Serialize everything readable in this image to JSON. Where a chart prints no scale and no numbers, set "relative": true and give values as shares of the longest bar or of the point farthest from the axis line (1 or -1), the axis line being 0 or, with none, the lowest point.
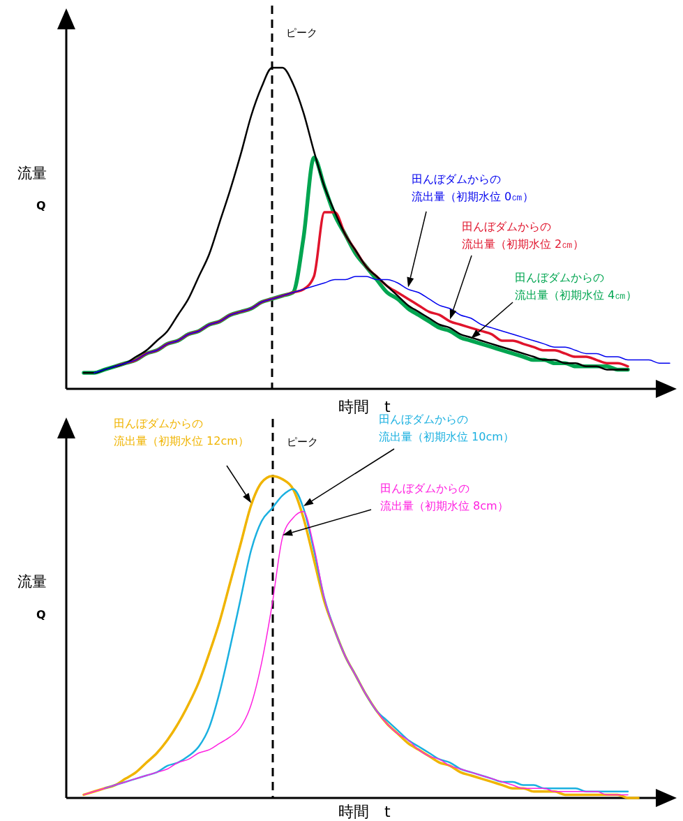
{
  "chart_data": [
    {
      "type": "line",
      "relative": true,
      "xlabel": "時間　t",
      "ylabel": "流量\nQ",
      "categories": [
        null,
        null,
        null,
        null,
        null,
        null,
        null,
        null,
        null,
        null,
        null,
        null,
        null,
        null,
        null,
        null,
        null,
        null,
        null,
        null,
        null,
        null,
        null,
        null,
        null,
        null,
        null,
        null,
        null,
        null,
        null,
        null,
        null,
        null,
        null,
        null,
        null,
        null,
        null,
        null,
        null,
        null,
        null,
        null,
        null,
        null,
        null,
        null,
        null,
        null,
        null,
        null,
        null,
        null,
        null,
        null,
        null
      ],
      "annotations": [
        "ピーク"
      ],
      "series": [
        {
          "color": "#000000",
          "values": [
            0.05,
            0.05,
            0.06,
            0.07,
            0.08,
            0.1,
            0.12,
            0.15,
            0.18,
            0.23,
            0.28,
            0.35,
            0.42,
            0.52,
            0.62,
            0.73,
            0.85,
            0.94,
            1.0,
            1.0,
            0.95,
            0.86,
            0.74,
            0.63,
            0.55,
            0.48,
            0.43,
            0.38,
            0.35,
            0.32,
            0.29,
            0.26,
            0.24,
            0.22,
            0.2,
            0.19,
            0.17,
            0.16,
            0.15,
            0.14,
            0.13,
            0.12,
            0.11,
            0.1,
            0.09,
            0.09,
            0.08,
            0.08,
            0.07,
            0.07,
            0.06,
            0.06,
            0.06,
            null,
            null,
            null,
            null
          ]
        },
        {
          "name": "田んぼダムからの流出量（初期水位 0㎝）",
          "color": "#0000ee",
          "values": [
            null,
            0.05,
            0.06,
            0.07,
            0.08,
            0.09,
            0.11,
            0.12,
            0.14,
            0.15,
            0.17,
            0.18,
            0.2,
            0.21,
            0.23,
            0.24,
            0.25,
            0.27,
            0.28,
            0.29,
            0.3,
            0.31,
            0.32,
            0.33,
            0.34,
            0.34,
            0.35,
            0.35,
            0.34,
            0.34,
            0.33,
            0.31,
            0.3,
            0.28,
            0.26,
            0.25,
            0.23,
            0.22,
            0.2,
            0.19,
            0.18,
            0.17,
            0.16,
            0.15,
            0.14,
            0.13,
            0.13,
            0.12,
            0.11,
            0.11,
            0.1,
            0.1,
            0.09,
            0.09,
            0.09,
            0.08,
            0.08
          ]
        },
        {
          "name": "田んぼダムからの流出量（初期水位 2㎝）",
          "color": "#e0142c",
          "values": [
            null,
            null,
            null,
            0.07,
            0.08,
            0.09,
            0.11,
            0.12,
            0.14,
            0.15,
            0.17,
            0.18,
            0.2,
            0.21,
            0.23,
            0.24,
            0.25,
            0.27,
            0.28,
            0.29,
            0.3,
            0.31,
            0.35,
            0.55,
            0.55,
            0.48,
            0.43,
            0.38,
            0.35,
            0.32,
            0.3,
            0.28,
            0.26,
            0.24,
            0.23,
            0.21,
            0.2,
            0.19,
            0.18,
            0.17,
            0.15,
            0.15,
            0.14,
            0.13,
            0.12,
            0.12,
            0.11,
            0.1,
            0.1,
            0.09,
            0.08,
            0.08,
            0.07,
            null,
            null,
            null,
            null
          ]
        },
        {
          "name": "田んぼダムからの流出量（初期水位 4㎝）",
          "color": "#00a550",
          "values": [
            0.05,
            0.05,
            0.06,
            0.07,
            0.08,
            0.09,
            0.11,
            0.12,
            0.14,
            0.15,
            0.17,
            0.18,
            0.2,
            0.21,
            0.23,
            0.24,
            0.25,
            0.27,
            0.28,
            0.29,
            0.3,
            0.47,
            0.72,
            0.63,
            0.54,
            0.48,
            0.42,
            0.38,
            0.34,
            0.3,
            0.28,
            0.25,
            0.23,
            0.21,
            0.19,
            0.18,
            0.16,
            0.15,
            0.14,
            0.13,
            0.12,
            0.11,
            0.1,
            0.09,
            0.09,
            0.08,
            0.08,
            0.07,
            0.07,
            0.07,
            0.07,
            0.06,
            0.06,
            null,
            null,
            null,
            null
          ]
        }
      ]
    },
    {
      "type": "line",
      "relative": true,
      "xlabel": "時間　t",
      "ylabel": "流量\nQ",
      "categories": [
        null,
        null,
        null,
        null,
        null,
        null,
        null,
        null,
        null,
        null,
        null,
        null,
        null,
        null,
        null,
        null,
        null,
        null,
        null,
        null,
        null,
        null,
        null,
        null,
        null,
        null,
        null,
        null,
        null,
        null,
        null,
        null,
        null,
        null,
        null,
        null,
        null,
        null,
        null,
        null,
        null,
        null,
        null,
        null,
        null,
        null,
        null,
        null,
        null,
        null,
        null,
        null,
        null,
        null,
        null,
        null,
        null
      ],
      "annotations": [
        "ピーク"
      ],
      "series": [
        {
          "name": "田んぼダムからの流出量（初期水位 12cm）",
          "color": "#f0b400",
          "values": [
            0.01,
            0.02,
            0.03,
            0.04,
            0.06,
            0.08,
            0.11,
            0.14,
            0.18,
            0.23,
            0.29,
            0.36,
            0.45,
            0.55,
            0.67,
            0.79,
            0.91,
            0.98,
            1.0,
            0.99,
            0.96,
            0.87,
            0.74,
            0.61,
            0.52,
            0.44,
            0.38,
            0.32,
            0.27,
            0.23,
            0.2,
            0.17,
            0.15,
            0.13,
            0.11,
            0.1,
            0.08,
            0.07,
            0.06,
            0.05,
            0.04,
            0.03,
            0.03,
            0.02,
            0.02,
            0.02,
            0.01,
            0.01,
            0.01,
            0.01,
            0.01,
            0.01,
            0.0,
            0.0,
            null,
            null,
            null
          ]
        },
        {
          "name": "田んぼダムからの流出量（初期水位 10cm）",
          "color": "#1ab0e0",
          "values": [
            null,
            null,
            0.03,
            0.04,
            0.05,
            0.06,
            0.07,
            0.08,
            0.1,
            0.11,
            0.13,
            0.16,
            0.22,
            0.33,
            0.47,
            0.62,
            0.77,
            0.86,
            0.9,
            0.94,
            0.96,
            0.9,
            0.77,
            0.62,
            0.52,
            0.44,
            0.38,
            0.32,
            0.27,
            0.24,
            0.21,
            0.18,
            0.16,
            0.14,
            0.12,
            0.11,
            0.09,
            0.08,
            0.07,
            0.06,
            0.05,
            0.05,
            0.04,
            0.04,
            0.03,
            0.03,
            0.03,
            0.03,
            0.02,
            0.02,
            0.02,
            0.02,
            0.02,
            null,
            null,
            null,
            null
          ]
        },
        {
          "name": "田んぼダムからの流出量（初期水位 8cm）",
          "color": "#ff20e0",
          "values": [
            0.01,
            0.02,
            0.03,
            0.04,
            0.05,
            0.06,
            0.07,
            0.08,
            0.09,
            0.11,
            0.12,
            0.14,
            0.15,
            0.17,
            0.19,
            0.22,
            0.29,
            0.42,
            0.6,
            0.81,
            0.87,
            0.89,
            0.78,
            0.62,
            0.52,
            0.44,
            0.38,
            0.32,
            0.27,
            0.23,
            0.2,
            0.18,
            0.15,
            0.13,
            0.12,
            0.1,
            0.09,
            0.08,
            0.07,
            0.06,
            0.05,
            0.04,
            0.03,
            0.03,
            0.03,
            0.02,
            0.02,
            0.02,
            0.02,
            0.02,
            0.01,
            0.01,
            0.01,
            null,
            null,
            null,
            null
          ]
        }
      ]
    }
  ]
}
